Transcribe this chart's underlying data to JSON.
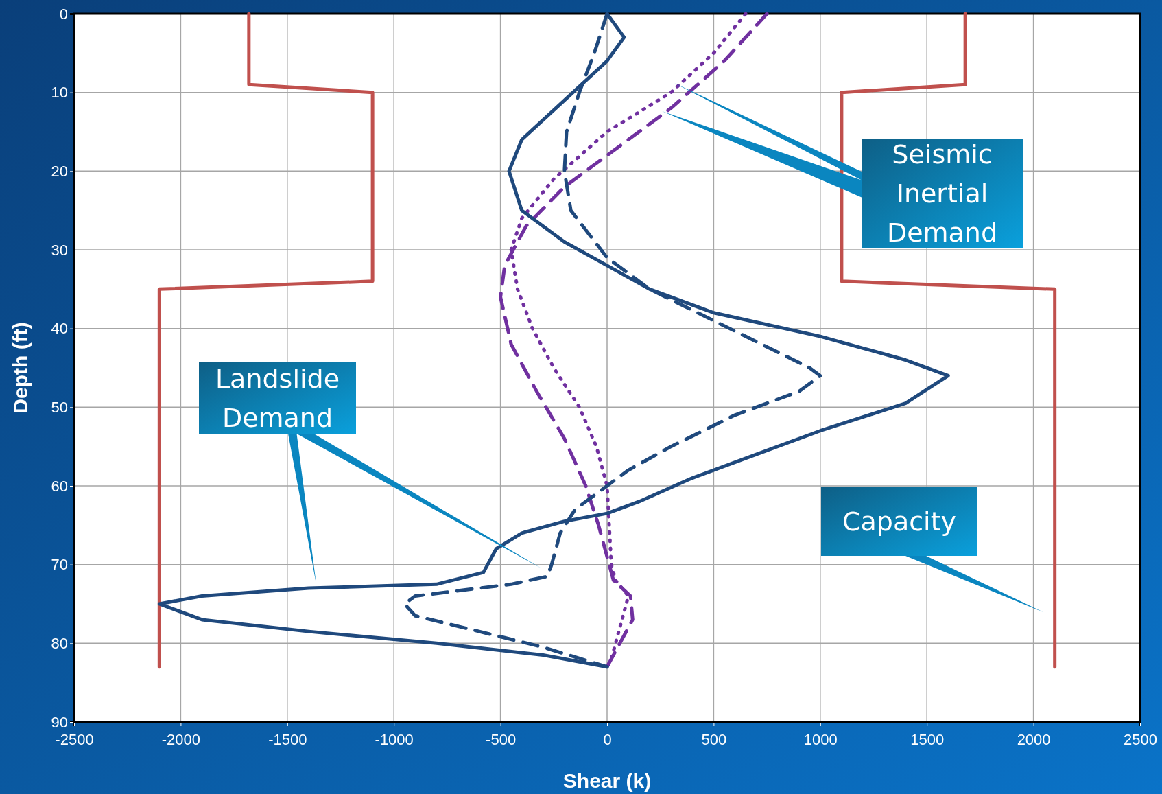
{
  "chart_data": {
    "type": "line",
    "xlabel": "Shear (k)",
    "ylabel": "Depth (ft)",
    "xlim": [
      -2500,
      2500
    ],
    "xticks": [
      -2500,
      -2000,
      -1500,
      -1000,
      -500,
      0,
      500,
      1000,
      1500,
      2000,
      2500
    ],
    "ylim": [
      90,
      0
    ],
    "yticks": [
      0,
      10,
      20,
      30,
      40,
      50,
      60,
      70,
      80,
      90
    ],
    "grid": true,
    "marker": "none",
    "series": [
      {
        "color": "#c0504d",
        "line_style": "solid",
        "x": [
          -1680,
          -1680,
          -1100,
          -1100,
          -2100,
          -2100
        ],
        "values": [
          0,
          9,
          10,
          34,
          35,
          83
        ]
      },
      {
        "color": "#c0504d",
        "line_style": "solid",
        "x": [
          1680,
          1680,
          1100,
          1100,
          2100,
          2100
        ],
        "values": [
          0,
          9,
          10,
          34,
          35,
          83
        ]
      },
      {
        "color": "#7030a0",
        "line_style": "dotted",
        "x": [
          650,
          500,
          300,
          0,
          -250,
          -400,
          -450,
          -420,
          -350,
          -250,
          -130,
          -50,
          0,
          10,
          20,
          40,
          100,
          60,
          20,
          0
        ],
        "values": [
          0,
          5,
          10,
          15,
          21,
          26,
          30,
          35,
          40,
          45,
          50,
          55,
          60,
          65,
          70,
          72,
          74,
          78,
          82,
          83
        ]
      },
      {
        "color": "#7030a0",
        "line_style": "dashed",
        "x": [
          750,
          550,
          300,
          50,
          -200,
          -380,
          -480,
          -500,
          -450,
          -330,
          -200,
          -100,
          -40,
          0,
          30,
          110,
          120,
          60,
          0
        ],
        "values": [
          0,
          6,
          12,
          17,
          22,
          27,
          32,
          36,
          42,
          48,
          54,
          60,
          65,
          69,
          72,
          74,
          77,
          80,
          83
        ]
      },
      {
        "color": "#1f497d",
        "line_style": "dashed",
        "x": [
          0,
          -60,
          -130,
          -190,
          -200,
          -170,
          0,
          200,
          500,
          800,
          950,
          1000,
          900,
          600,
          300,
          100,
          0,
          -150,
          -220,
          -260,
          -280,
          -450,
          -900,
          -950,
          -900,
          -600,
          -300,
          0
        ],
        "values": [
          0,
          5,
          10,
          15,
          20,
          25,
          31,
          35,
          39,
          43,
          45,
          46,
          48,
          51,
          55,
          58,
          60,
          63,
          66,
          70,
          71.5,
          72.5,
          74,
          75,
          76.5,
          78.5,
          80.5,
          83
        ]
      },
      {
        "color": "#1f497d",
        "line_style": "solid",
        "x": [
          0,
          80,
          0,
          -200,
          -400,
          -460,
          -400,
          -200,
          0,
          200,
          500,
          1000,
          1200,
          1400,
          1600,
          1400,
          1000,
          700,
          400,
          150,
          0,
          -200,
          -400,
          -520,
          -580,
          -800,
          -1400,
          -1900,
          -2100,
          -1900,
          -1400,
          -800,
          -300,
          0
        ],
        "values": [
          0,
          3,
          6,
          11,
          16,
          20,
          25,
          29,
          32,
          35,
          38,
          41,
          42.5,
          44,
          46,
          49.5,
          53,
          56,
          59,
          62,
          63.5,
          64.5,
          66,
          68,
          71,
          72.5,
          73,
          74,
          75,
          77,
          78.5,
          80,
          81.5,
          83
        ]
      }
    ],
    "annotations": [
      "Seismic Inertial Demand",
      "Landslide Demand",
      "Capacity"
    ]
  }
}
